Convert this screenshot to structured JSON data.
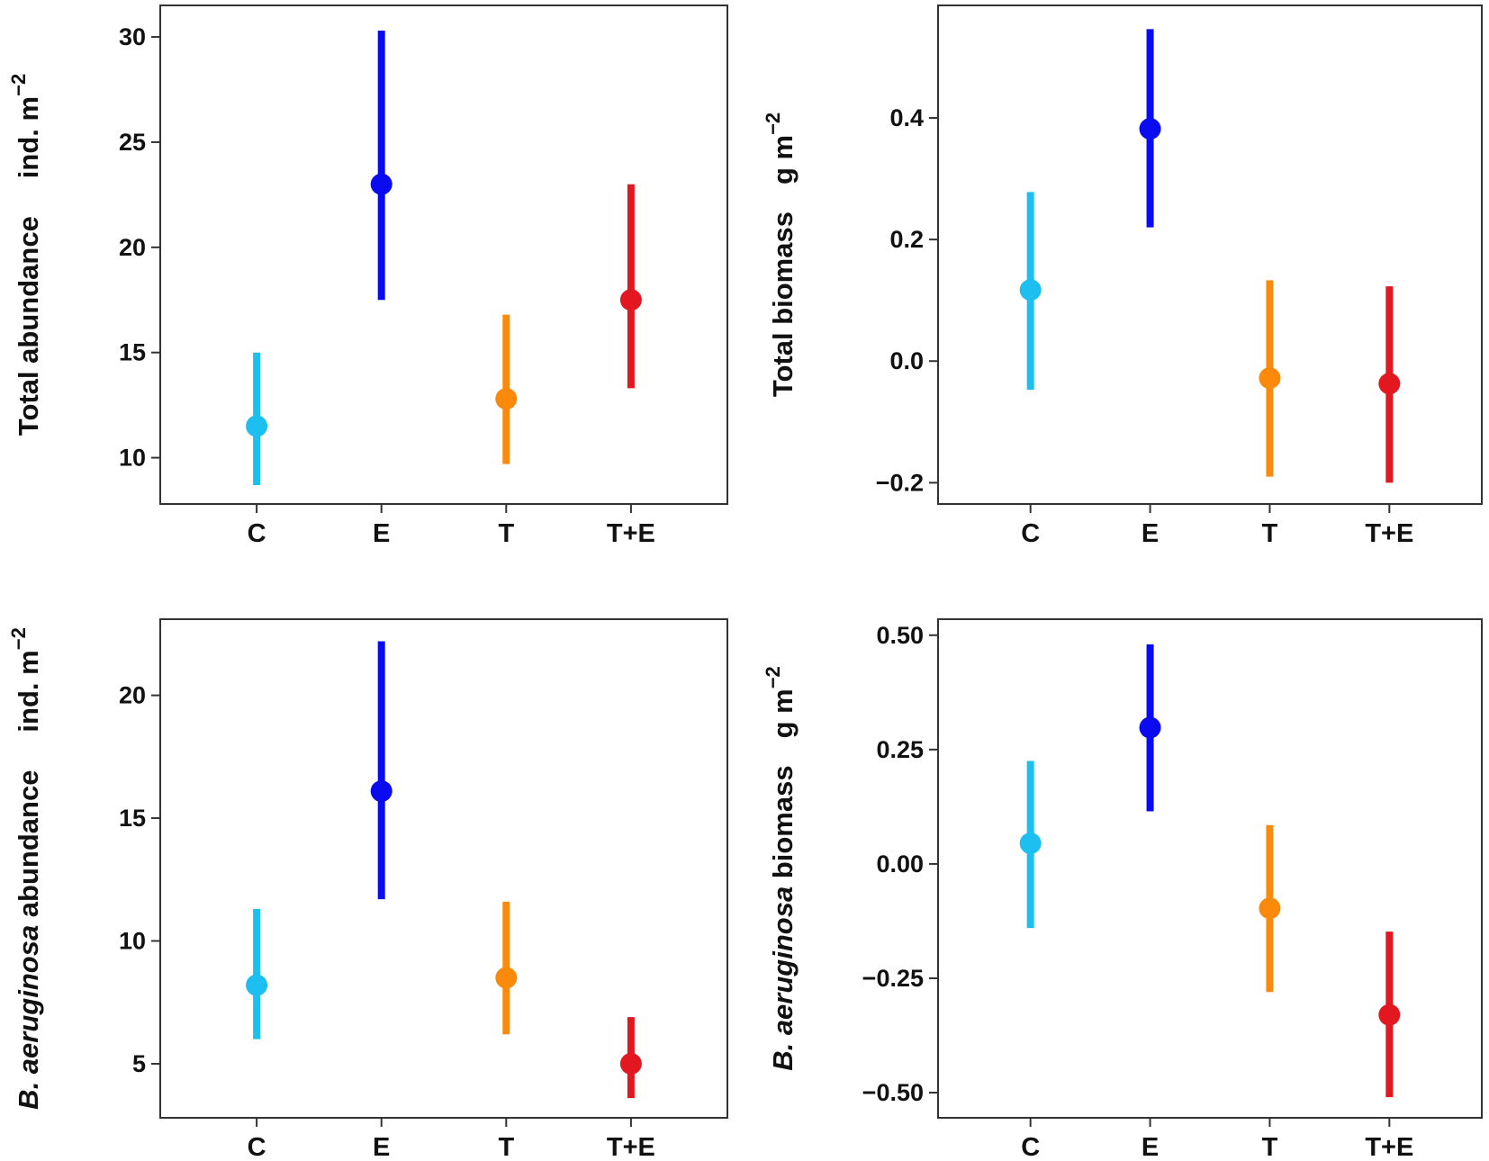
{
  "colors": {
    "C": "#1cbff0",
    "E": "#0b0bef",
    "T": "#fb8a0a",
    "T+E": "#e3171f",
    "axis": "#333333"
  },
  "chart_data": [
    {
      "type": "errorbar",
      "ylabel": {
        "main": "Total abundance",
        "unit": "ind. m",
        "exp": "−2"
      },
      "categories": [
        "C",
        "E",
        "T",
        "T+E"
      ],
      "values": [
        11.5,
        23.0,
        12.8,
        17.5
      ],
      "lower": [
        8.7,
        17.5,
        9.7,
        13.3
      ],
      "upper": [
        15.0,
        30.3,
        16.8,
        23.0
      ],
      "ylim": [
        7.8,
        31.5
      ],
      "yticks": [
        10,
        15,
        20,
        25,
        30
      ],
      "yticklabels": [
        "10",
        "15",
        "20",
        "25",
        "30"
      ]
    },
    {
      "type": "errorbar",
      "ylabel": {
        "main": "Total biomass",
        "unit": "g m",
        "exp": "−2"
      },
      "categories": [
        "C",
        "E",
        "T",
        "T+E"
      ],
      "values": [
        0.117,
        0.382,
        -0.028,
        -0.037
      ],
      "lower": [
        -0.047,
        0.22,
        -0.19,
        -0.2
      ],
      "upper": [
        0.278,
        0.546,
        0.133,
        0.123
      ],
      "ylim": [
        -0.235,
        0.585
      ],
      "yticks": [
        -0.2,
        0.0,
        0.2,
        0.4
      ],
      "yticklabels": [
        "−0.2",
        "0.0",
        "0.2",
        "0.4"
      ]
    },
    {
      "type": "errorbar",
      "ylabel": {
        "italic": "B. aeruginosa",
        "main": " abundance",
        "unit": "ind. m",
        "exp": "−2"
      },
      "categories": [
        "C",
        "E",
        "T",
        "T+E"
      ],
      "values": [
        8.2,
        16.1,
        8.5,
        5.0
      ],
      "lower": [
        6.0,
        11.7,
        6.2,
        3.6
      ],
      "upper": [
        11.3,
        22.2,
        11.6,
        6.9
      ],
      "ylim": [
        2.8,
        23.1
      ],
      "yticks": [
        5,
        10,
        15,
        20
      ],
      "yticklabels": [
        "5",
        "10",
        "15",
        "20"
      ]
    },
    {
      "type": "errorbar",
      "ylabel": {
        "italic": "B. aeruginosa",
        "main": " biomass",
        "unit": "g m",
        "exp": "−2"
      },
      "categories": [
        "C",
        "E",
        "T",
        "T+E"
      ],
      "values": [
        0.045,
        0.298,
        -0.097,
        -0.33
      ],
      "lower": [
        -0.14,
        0.115,
        -0.28,
        -0.51
      ],
      "upper": [
        0.225,
        0.48,
        0.085,
        -0.148
      ],
      "ylim": [
        -0.555,
        0.535
      ],
      "yticks": [
        -0.5,
        -0.25,
        0.0,
        0.25,
        0.5
      ],
      "yticklabels": [
        "−0.50",
        "−0.25",
        "0.00",
        "0.25",
        "0.50"
      ]
    }
  ]
}
